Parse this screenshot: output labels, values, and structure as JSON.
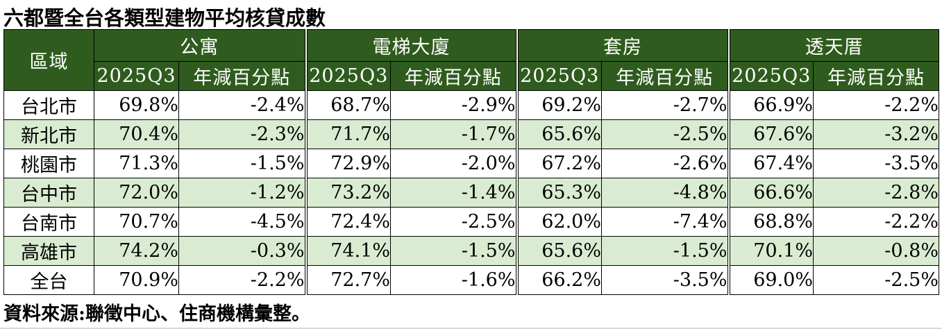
{
  "title": "六都暨全台各類型建物平均核貸成數",
  "source_note": "資料來源:聯徵中心、住商機構彙整。",
  "colors": {
    "header_bg": "#2f5c1e",
    "header_text": "#ffffff",
    "row_alt_bg": "#d9ecd1",
    "row_bg": "#ffffff",
    "border": "#000000",
    "bottom_rule": "#d9d9d9"
  },
  "chart_data": {
    "type": "table",
    "title": "六都暨全台各類型建物平均核貸成數",
    "region_header": "區域",
    "groups": [
      {
        "label": "公寓"
      },
      {
        "label": "電梯大廈"
      },
      {
        "label": "套房"
      },
      {
        "label": "透天厝"
      }
    ],
    "sub_headers": [
      "2025Q3",
      "年減百分點"
    ],
    "rows": [
      {
        "region": "台北市",
        "values": [
          "69.8%",
          "-2.4%",
          "68.7%",
          "-2.9%",
          "69.2%",
          "-2.7%",
          "66.9%",
          "-2.2%"
        ]
      },
      {
        "region": "新北市",
        "values": [
          "70.4%",
          "-2.3%",
          "71.7%",
          "-1.7%",
          "65.6%",
          "-2.5%",
          "67.6%",
          "-3.2%"
        ]
      },
      {
        "region": "桃園市",
        "values": [
          "71.3%",
          "-1.5%",
          "72.9%",
          "-2.0%",
          "67.2%",
          "-2.6%",
          "67.4%",
          "-3.5%"
        ]
      },
      {
        "region": "台中市",
        "values": [
          "72.0%",
          "-1.2%",
          "73.2%",
          "-1.4%",
          "65.3%",
          "-4.8%",
          "66.6%",
          "-2.8%"
        ]
      },
      {
        "region": "台南市",
        "values": [
          "70.7%",
          "-4.5%",
          "72.4%",
          "-2.5%",
          "62.0%",
          "-7.4%",
          "68.8%",
          "-2.2%"
        ]
      },
      {
        "region": "高雄市",
        "values": [
          "74.2%",
          "-0.3%",
          "74.1%",
          "-1.5%",
          "65.6%",
          "-1.5%",
          "70.1%",
          "-0.8%"
        ]
      },
      {
        "region": "全台",
        "values": [
          "70.9%",
          "-2.2%",
          "72.7%",
          "-1.6%",
          "66.2%",
          "-3.5%",
          "69.0%",
          "-2.5%"
        ]
      }
    ]
  }
}
